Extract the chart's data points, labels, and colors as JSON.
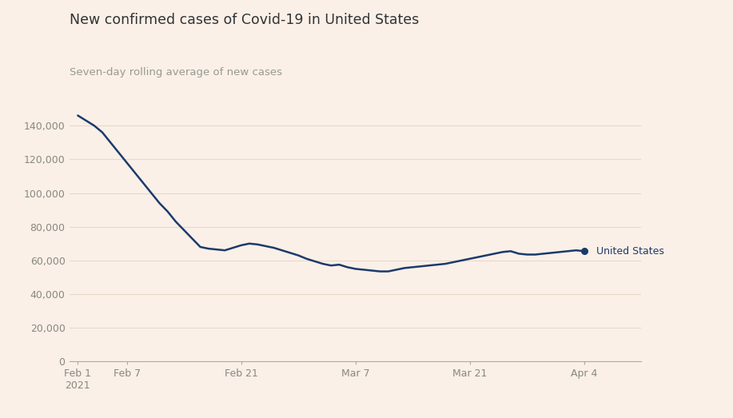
{
  "title": "New confirmed cases of Covid-19 in United States",
  "subtitle": "Seven-day rolling average of new cases",
  "background_color": "#faf0e8",
  "line_color": "#1c3a6b",
  "label_color": "#888880",
  "title_color": "#333333",
  "subtitle_color": "#999990",
  "grid_color": "#e8d8c8",
  "legend_label": "United States",
  "ylim": [
    0,
    155000
  ],
  "yticks": [
    0,
    20000,
    40000,
    60000,
    80000,
    100000,
    120000,
    140000
  ],
  "xtick_labels": [
    "Feb 1\n2021",
    "Feb 7",
    "Feb 21",
    "Mar 7",
    "Mar 21",
    "Apr 4"
  ],
  "xtick_days": [
    0,
    6,
    20,
    34,
    48,
    62
  ],
  "data_values": [
    146000,
    143000,
    140000,
    136000,
    130000,
    124000,
    118000,
    112000,
    106000,
    100000,
    94000,
    89000,
    83000,
    78000,
    73000,
    68000,
    67000,
    66500,
    66000,
    67500,
    69000,
    70000,
    69500,
    68500,
    67500,
    66000,
    64500,
    63000,
    61000,
    59500,
    58000,
    57000,
    57500,
    56000,
    55000,
    54500,
    54000,
    53500,
    53500,
    54500,
    55500,
    56000,
    56500,
    57000,
    57500,
    58000,
    59000,
    60000,
    61000,
    62000,
    63000,
    64000,
    65000,
    65500,
    64000,
    63500,
    63500,
    64000,
    64500,
    65000,
    65500,
    66000,
    65500
  ]
}
